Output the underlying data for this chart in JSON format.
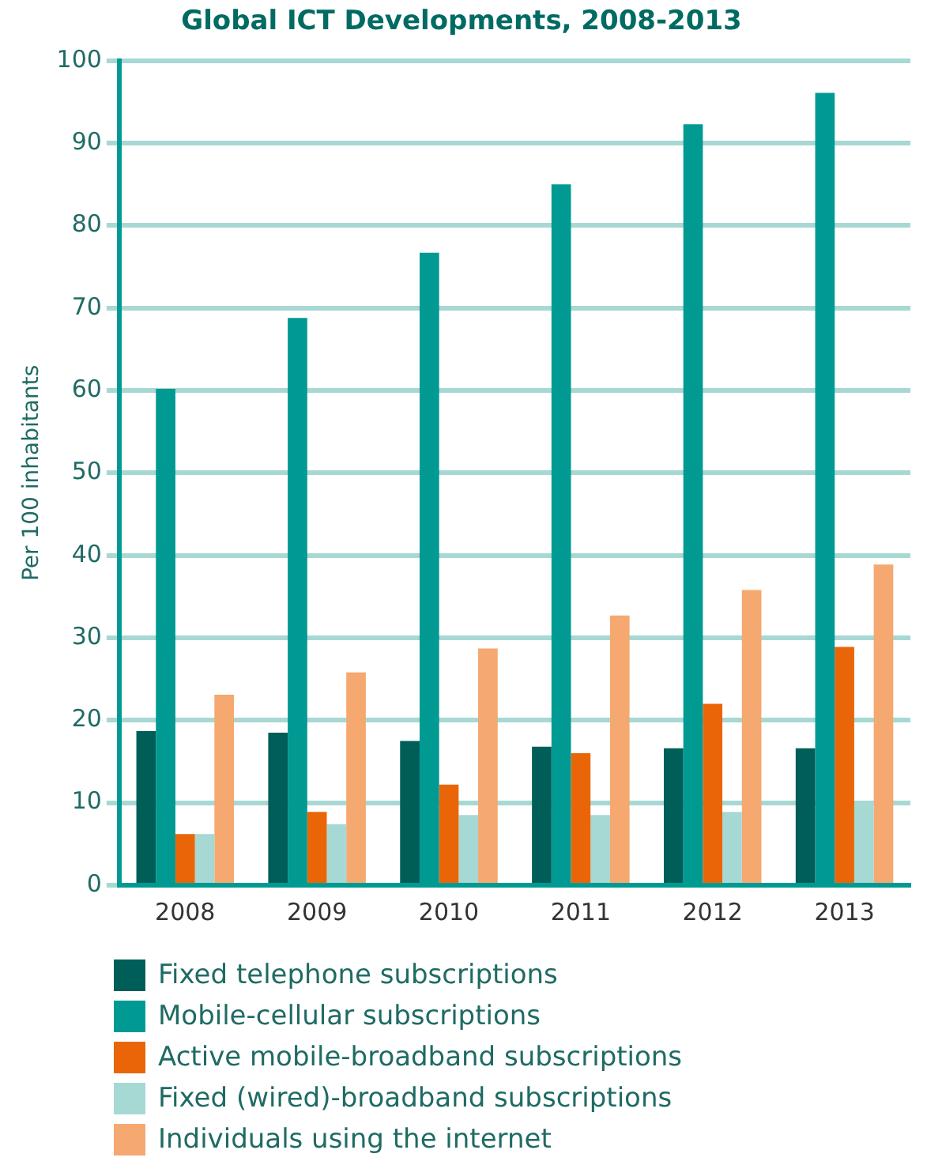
{
  "chart_data": {
    "type": "bar",
    "title": "Global ICT Developments, 2008-2013",
    "ylabel": "Per 100 inhabitants",
    "categories": [
      "2008",
      "2009",
      "2010",
      "2011",
      "2012",
      "2013"
    ],
    "series": [
      {
        "name": "Fixed telephone subscriptions",
        "color": "#005e58",
        "values": [
          18.7,
          18.5,
          17.5,
          16.8,
          16.6,
          16.6
        ]
      },
      {
        "name": "Mobile-cellular subscriptions",
        "color": "#009a92",
        "values": [
          60.2,
          68.8,
          76.7,
          85.0,
          92.3,
          96.1
        ]
      },
      {
        "name": "Active mobile-broadband subscriptions",
        "color": "#ea6508",
        "values": [
          6.2,
          8.9,
          12.2,
          16.0,
          22.0,
          28.9
        ]
      },
      {
        "name": "Fixed (wired)-broadband subscriptions",
        "color": "#a6d8d4",
        "values": [
          6.2,
          7.4,
          8.5,
          8.5,
          8.9,
          10.2
        ]
      },
      {
        "name": "Individuals using the internet",
        "color": "#f5a870",
        "values": [
          23.1,
          25.8,
          28.7,
          32.7,
          35.8,
          38.9
        ]
      }
    ],
    "ylim": [
      0,
      100
    ],
    "yticks": [
      0,
      10,
      20,
      30,
      40,
      50,
      60,
      70,
      80,
      90,
      100
    ],
    "grid": "y",
    "legend": "bottom"
  }
}
